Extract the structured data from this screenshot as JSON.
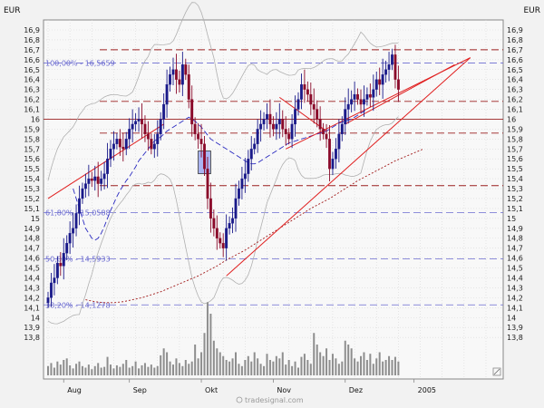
{
  "chart_data": {
    "type": "candlestick",
    "currency_left": "EUR",
    "currency_right": "EUR",
    "watermark": "tradesignal.com",
    "ylim": [
      13.75,
      17.0
    ],
    "y_ticks": [
      "16,9",
      "16,8",
      "16,7",
      "16,6",
      "16,5",
      "16,4",
      "16,3",
      "16,2",
      "16,1",
      "16",
      "15,9",
      "15,8",
      "15,7",
      "15,6",
      "15,5",
      "15,4",
      "15,3",
      "15,2",
      "15,1",
      "15",
      "14,9",
      "14,8",
      "14,7",
      "14,6",
      "14,5",
      "14,4",
      "14,3",
      "14,2",
      "14,1",
      "14",
      "13,9",
      "13,8"
    ],
    "months": [
      {
        "label": "Aug",
        "day": 5
      },
      {
        "label": "Sep",
        "day": 26
      },
      {
        "label": "Okt",
        "day": 49
      },
      {
        "label": "Nov",
        "day": 72
      },
      {
        "label": "Dez",
        "day": 95
      },
      {
        "label": "2005",
        "day": 117
      }
    ],
    "fibonacci": [
      {
        "label": "100,00% - 16,5659",
        "value": 16.566
      },
      {
        "label": "61,80% - 15,0588",
        "value": 15.059
      },
      {
        "label": "50,00% - 14,5933",
        "value": 14.593
      },
      {
        "label": "38,20% - 14,1278",
        "value": 14.128
      }
    ],
    "horizontal_levels": [
      16.7,
      16.18,
      16.0,
      15.86,
      15.33
    ],
    "box": {
      "day_from": 48,
      "day_to": 52,
      "top": 15.68,
      "bottom": 15.45
    },
    "trendlines": [
      {
        "x1": 0,
        "y1": 15.2,
        "x2": 37,
        "y2": 15.95
      },
      {
        "x1": 57,
        "y1": 14.42,
        "x2": 135,
        "y2": 16.62
      },
      {
        "x1": 76,
        "y1": 15.7,
        "x2": 135,
        "y2": 16.62
      },
      {
        "x1": 74,
        "y1": 16.22,
        "x2": 89,
        "y2": 15.88
      },
      {
        "x1": 95,
        "y1": 15.95,
        "x2": 130,
        "y2": 16.55
      }
    ],
    "closes": [
      14.2,
      14.35,
      14.4,
      14.55,
      14.52,
      14.65,
      14.75,
      14.85,
      14.9,
      15.05,
      15.2,
      15.3,
      15.35,
      15.4,
      15.38,
      15.42,
      15.35,
      15.4,
      15.45,
      15.6,
      15.7,
      15.75,
      15.8,
      15.72,
      15.7,
      15.8,
      15.9,
      15.95,
      15.98,
      16.0,
      15.95,
      15.85,
      15.8,
      15.7,
      15.75,
      15.85,
      16.0,
      16.15,
      16.35,
      16.45,
      16.5,
      16.4,
      16.35,
      16.55,
      16.45,
      16.2,
      15.95,
      15.85,
      15.8,
      15.75,
      15.5,
      15.2,
      15.0,
      14.9,
      14.8,
      14.75,
      14.7,
      14.9,
      14.95,
      15.0,
      15.2,
      15.3,
      15.4,
      15.45,
      15.6,
      15.7,
      15.75,
      15.9,
      15.95,
      16.0,
      16.05,
      15.95,
      15.9,
      15.95,
      16.0,
      15.9,
      15.85,
      15.8,
      15.95,
      16.1,
      16.2,
      16.35,
      16.3,
      16.25,
      16.15,
      16.1,
      16.0,
      15.9,
      15.85,
      15.8,
      15.5,
      15.6,
      15.7,
      15.85,
      15.95,
      16.1,
      16.15,
      16.2,
      16.25,
      16.2,
      16.15,
      16.2,
      16.25,
      16.22,
      16.3,
      16.4,
      16.35,
      16.45,
      16.5,
      16.55,
      16.65,
      16.4,
      16.3
    ],
    "sma_fast": [
      15.3,
      15.2,
      15.1,
      15.0,
      14.9,
      14.85,
      14.8,
      14.78,
      14.8,
      14.85,
      14.92,
      15.0,
      15.08,
      15.15,
      15.22,
      15.28,
      15.33,
      15.38,
      15.42,
      15.47,
      15.52,
      15.58,
      15.62,
      15.66,
      15.7,
      15.74,
      15.78,
      15.8,
      15.82,
      15.85,
      15.88,
      15.9,
      15.92,
      15.94,
      15.96,
      15.98,
      16.0,
      16.02,
      16.0,
      15.98,
      15.95,
      15.92,
      15.88,
      15.84,
      15.8,
      15.78,
      15.76,
      15.74,
      15.72,
      15.7,
      15.68,
      15.66,
      15.64,
      15.62,
      15.6,
      15.58,
      15.56,
      15.55,
      15.55,
      15.56,
      15.58,
      15.6,
      15.62,
      15.64,
      15.66,
      15.68,
      15.7,
      15.72,
      15.74,
      15.76,
      15.77,
      15.78,
      15.79,
      15.8,
      15.81,
      15.82,
      15.83,
      15.84,
      15.85,
      15.86,
      15.87,
      15.88,
      15.9,
      15.92,
      15.94,
      15.96,
      15.97,
      15.98,
      15.99,
      16.0,
      16.02,
      16.04,
      16.06,
      16.08,
      16.1
    ],
    "sma_slow": [
      14.18,
      14.16,
      14.15,
      14.15,
      14.16,
      14.18,
      14.2,
      14.23,
      14.26,
      14.3,
      14.34,
      14.38,
      14.42,
      14.47,
      14.52,
      14.58,
      14.63,
      14.68,
      14.74,
      14.8,
      14.86,
      14.92,
      14.98,
      15.04,
      15.1,
      15.15,
      15.2,
      15.26,
      15.32,
      15.38,
      15.43,
      15.48,
      15.53,
      15.58,
      15.62,
      15.66,
      15.7
    ],
    "volume": [
      0.12,
      0.16,
      0.1,
      0.18,
      0.14,
      0.2,
      0.22,
      0.13,
      0.09,
      0.15,
      0.18,
      0.12,
      0.1,
      0.14,
      0.08,
      0.12,
      0.16,
      0.1,
      0.11,
      0.24,
      0.14,
      0.09,
      0.13,
      0.11,
      0.15,
      0.2,
      0.1,
      0.12,
      0.18,
      0.09,
      0.13,
      0.16,
      0.11,
      0.14,
      0.1,
      0.12,
      0.26,
      0.35,
      0.3,
      0.18,
      0.14,
      0.22,
      0.16,
      0.12,
      0.2,
      0.15,
      0.18,
      0.4,
      0.22,
      0.3,
      0.55,
      0.95,
      0.8,
      0.45,
      0.35,
      0.3,
      0.25,
      0.2,
      0.18,
      0.22,
      0.3,
      0.15,
      0.12,
      0.2,
      0.25,
      0.18,
      0.3,
      0.22,
      0.15,
      0.12,
      0.28,
      0.2,
      0.18,
      0.25,
      0.22,
      0.3,
      0.14,
      0.2,
      0.12,
      0.18,
      0.1,
      0.24,
      0.28,
      0.2,
      0.15,
      0.55,
      0.4,
      0.3,
      0.25,
      0.35,
      0.2,
      0.28,
      0.22,
      0.15,
      0.18,
      0.45,
      0.4,
      0.35,
      0.22,
      0.18,
      0.25,
      0.3,
      0.2,
      0.28,
      0.15,
      0.22,
      0.3,
      0.18,
      0.2,
      0.25,
      0.2,
      0.24,
      0.18
    ]
  }
}
